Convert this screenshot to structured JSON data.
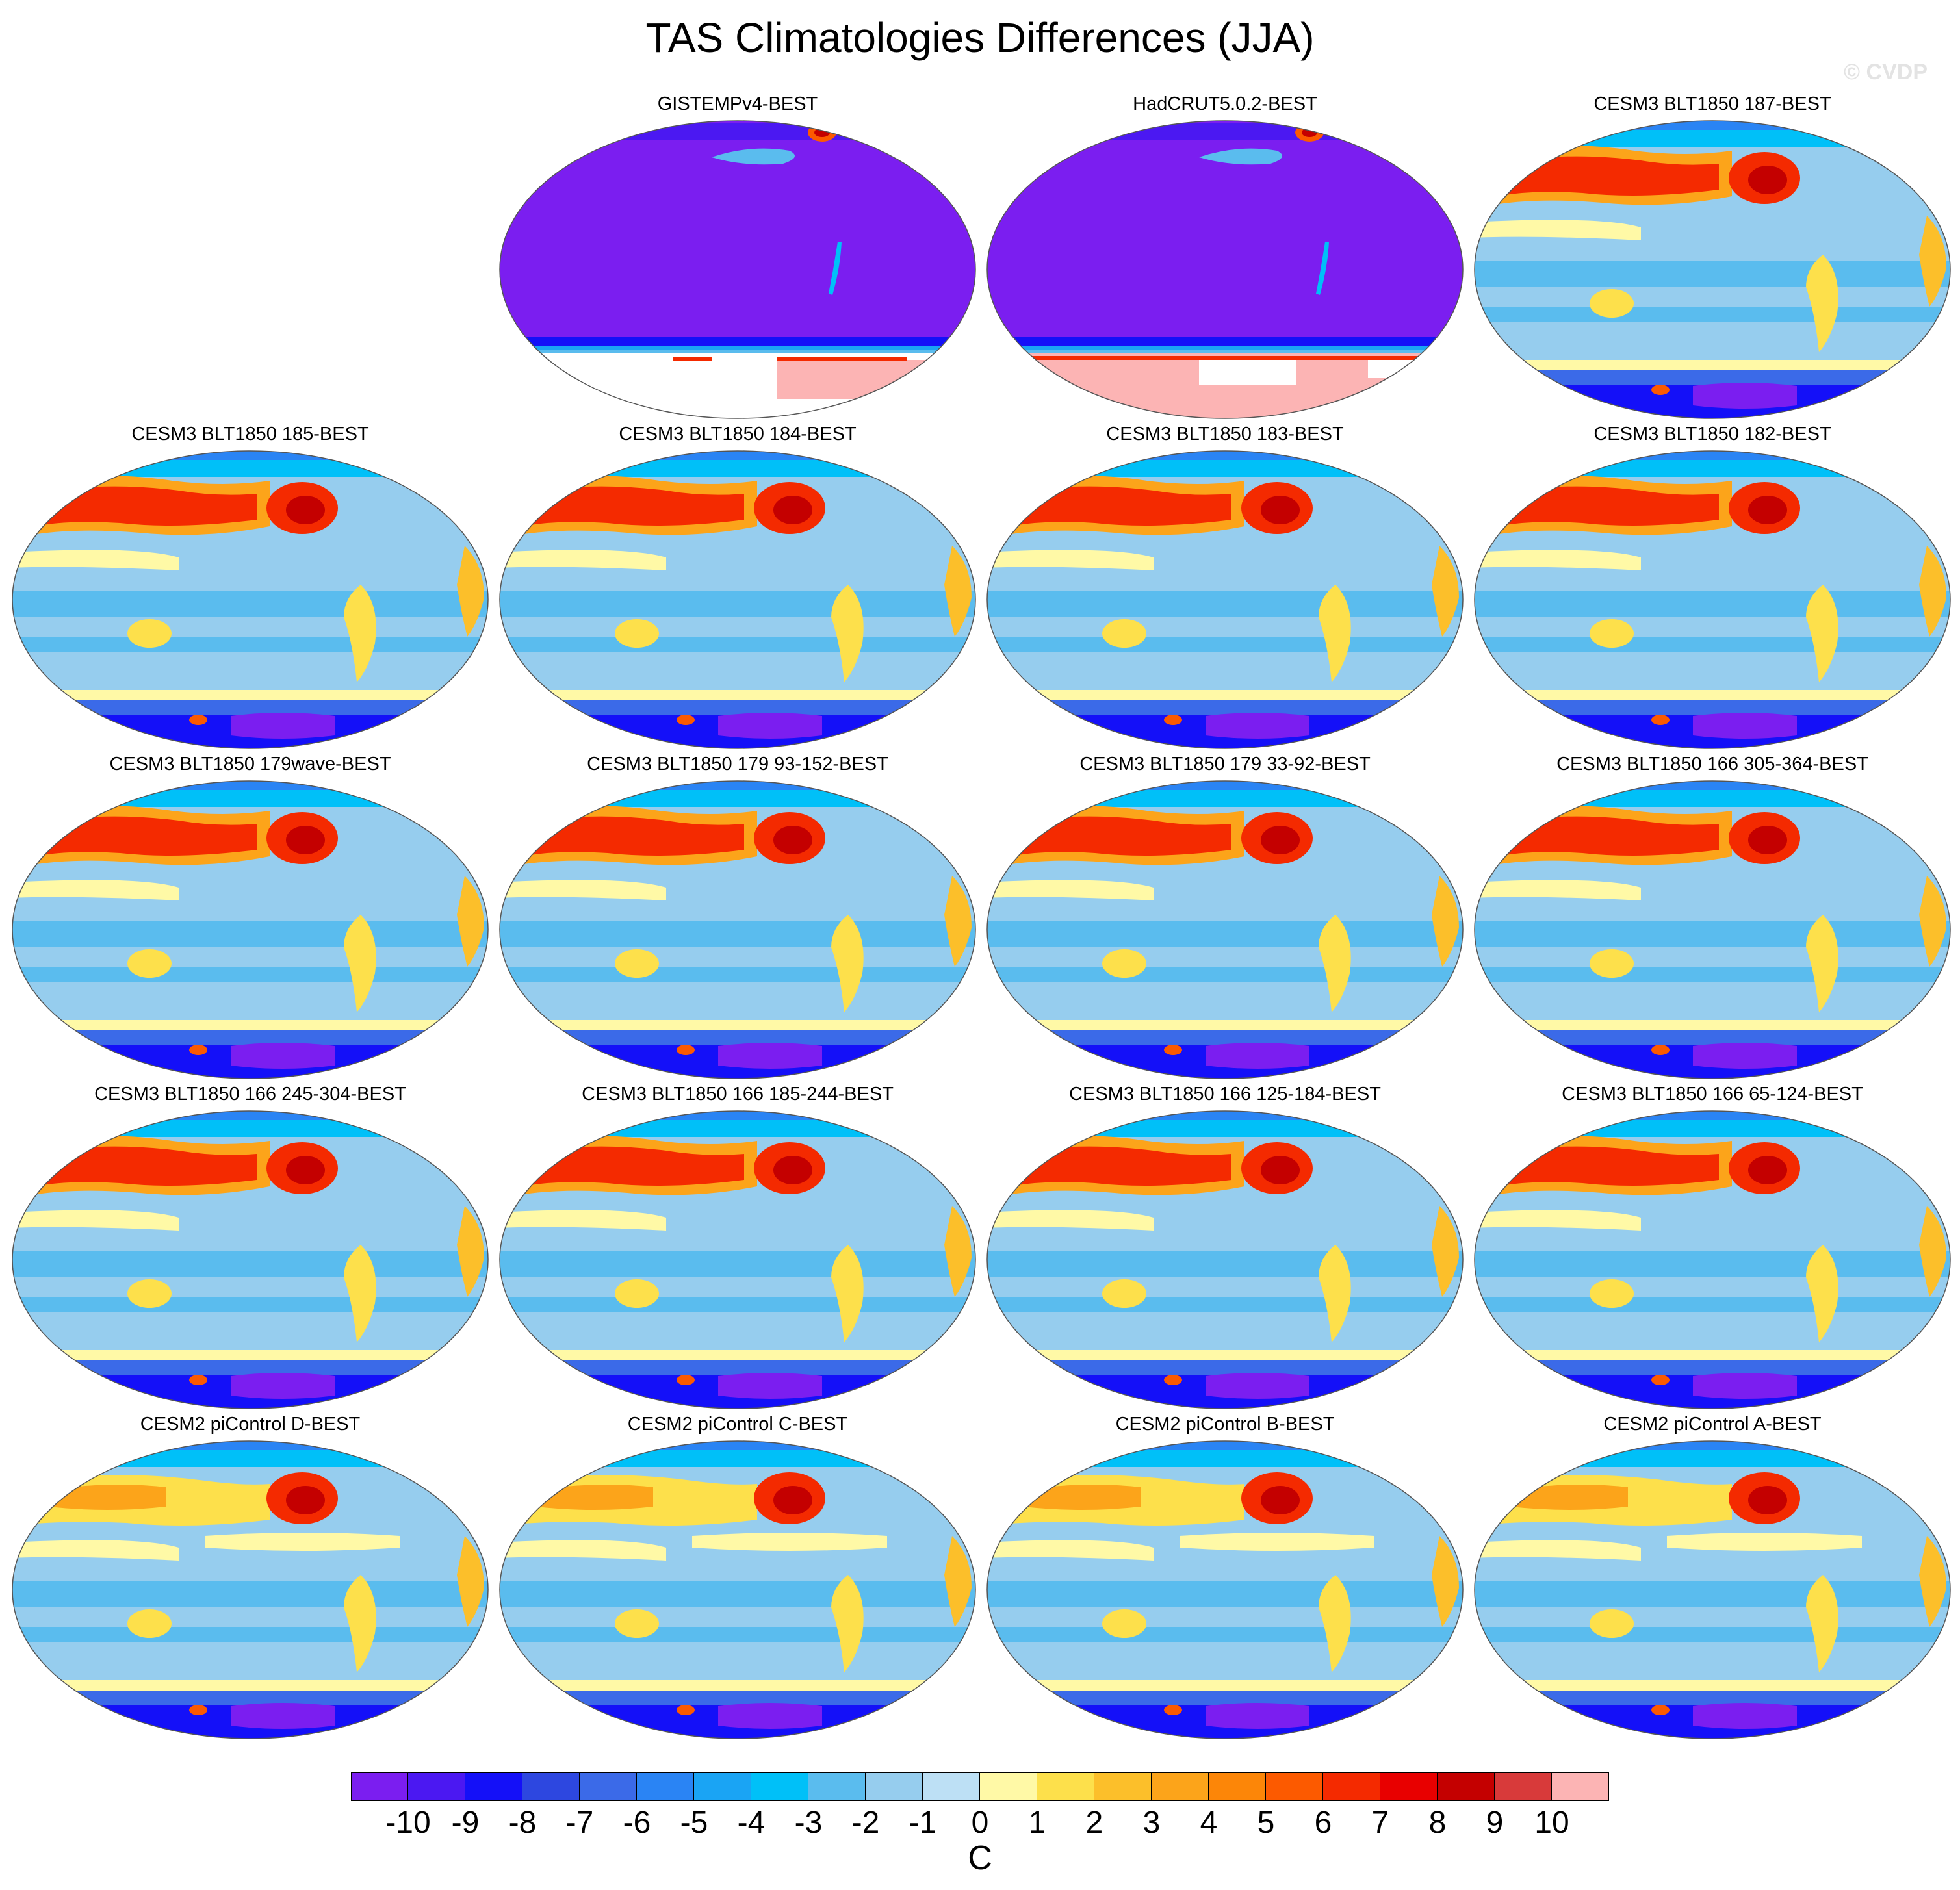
{
  "title": "TAS Climatologies Differences (JJA)",
  "watermark": "© CVDP",
  "panels": [
    {
      "title": "GISTEMPv4-BEST",
      "pattern": "obs"
    },
    {
      "title": "HadCRUT5.0.2-BEST",
      "pattern": "obs"
    },
    {
      "title": "CESM3 BLT1850 187-BEST",
      "pattern": "cesm3"
    },
    {
      "title": "CESM3 BLT1850 185-BEST",
      "pattern": "cesm3"
    },
    {
      "title": "CESM3 BLT1850 184-BEST",
      "pattern": "cesm3"
    },
    {
      "title": "CESM3 BLT1850 183-BEST",
      "pattern": "cesm3"
    },
    {
      "title": "CESM3 BLT1850 182-BEST",
      "pattern": "cesm3"
    },
    {
      "title": "CESM3 BLT1850 179wave-BEST",
      "pattern": "cesm3"
    },
    {
      "title": "CESM3 BLT1850 179 93-152-BEST",
      "pattern": "cesm3"
    },
    {
      "title": "CESM3 BLT1850 179 33-92-BEST",
      "pattern": "cesm3"
    },
    {
      "title": "CESM3 BLT1850 166 305-364-BEST",
      "pattern": "cesm3"
    },
    {
      "title": "CESM3 BLT1850 166 245-304-BEST",
      "pattern": "cesm3"
    },
    {
      "title": "CESM3 BLT1850 166 185-244-BEST",
      "pattern": "cesm3"
    },
    {
      "title": "CESM3 BLT1850 166 125-184-BEST",
      "pattern": "cesm3"
    },
    {
      "title": "CESM3 BLT1850 166 65-124-BEST",
      "pattern": "cesm3"
    },
    {
      "title": "CESM2 piControl D-BEST",
      "pattern": "cesm2"
    },
    {
      "title": "CESM2 piControl C-BEST",
      "pattern": "cesm2"
    },
    {
      "title": "CESM2 piControl B-BEST",
      "pattern": "cesm2"
    },
    {
      "title": "CESM2 piControl A-BEST",
      "pattern": "cesm2"
    }
  ],
  "colorbar": {
    "unit": "C",
    "tick_labels": [
      "-10",
      "-9",
      "-8",
      "-7",
      "-6",
      "-5",
      "-4",
      "-3",
      "-2",
      "-1",
      "0",
      "1",
      "2",
      "3",
      "4",
      "5",
      "6",
      "7",
      "8",
      "9",
      "10"
    ],
    "colors": [
      "#7b1ef0",
      "#4b18f2",
      "#1410f8",
      "#2d47e0",
      "#3b6ae8",
      "#2a84f4",
      "#1aa4f4",
      "#00c0f8",
      "#5abcee",
      "#96cdee",
      "#bde0f5",
      "#fff9a6",
      "#fde04b",
      "#fcbf2a",
      "#fca41a",
      "#fc8608",
      "#fc5a00",
      "#f42a00",
      "#e80000",
      "#c40000",
      "#d83a3a",
      "#fcb4b4"
    ]
  }
}
